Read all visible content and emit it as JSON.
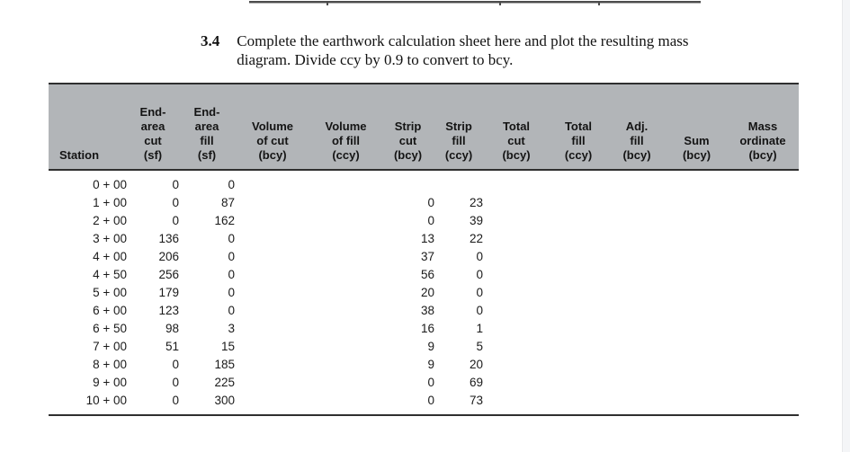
{
  "problem": {
    "number": "3.4",
    "statement": "Complete the earthwork calculation sheet here and plot the resulting mass\ndiagram. Divide ccy by 0.9 to convert to bcy."
  },
  "table": {
    "columns": [
      {
        "id": "station",
        "label": "Station"
      },
      {
        "id": "end_area_cut",
        "label": "End-\narea\ncut\n(sf)"
      },
      {
        "id": "end_area_fill",
        "label": "End-\narea\nfill\n(sf)"
      },
      {
        "id": "volume_of_cut",
        "label": "Volume\nof cut\n(bcy)"
      },
      {
        "id": "volume_of_fill",
        "label": "Volume\nof fill\n(ccy)"
      },
      {
        "id": "strip_cut",
        "label": "Strip\ncut\n(bcy)"
      },
      {
        "id": "strip_fill",
        "label": "Strip\nfill\n(ccy)"
      },
      {
        "id": "total_cut",
        "label": "Total\ncut\n(bcy)"
      },
      {
        "id": "total_fill",
        "label": "Total\nfill\n(ccy)"
      },
      {
        "id": "adj_fill",
        "label": "Adj.\nfill\n(bcy)"
      },
      {
        "id": "sum",
        "label": "Sum\n(bcy)"
      },
      {
        "id": "mass_ordinate",
        "label": "Mass\nordinate\n(bcy)"
      }
    ],
    "rows": [
      {
        "station": "0 + 00",
        "end_area_cut": "0",
        "end_area_fill": "0",
        "strip_cut": "",
        "strip_fill": "",
        "volume_of_cut": "",
        "volume_of_fill": "",
        "total_cut": "",
        "total_fill": "",
        "adj_fill": "",
        "sum": "",
        "mass_ordinate": ""
      },
      {
        "station": "1 + 00",
        "end_area_cut": "0",
        "end_area_fill": "87",
        "strip_cut": "0",
        "strip_fill": "23",
        "volume_of_cut": "",
        "volume_of_fill": "",
        "total_cut": "",
        "total_fill": "",
        "adj_fill": "",
        "sum": "",
        "mass_ordinate": ""
      },
      {
        "station": "2 + 00",
        "end_area_cut": "0",
        "end_area_fill": "162",
        "strip_cut": "0",
        "strip_fill": "39",
        "volume_of_cut": "",
        "volume_of_fill": "",
        "total_cut": "",
        "total_fill": "",
        "adj_fill": "",
        "sum": "",
        "mass_ordinate": ""
      },
      {
        "station": "3 + 00",
        "end_area_cut": "136",
        "end_area_fill": "0",
        "strip_cut": "13",
        "strip_fill": "22",
        "volume_of_cut": "",
        "volume_of_fill": "",
        "total_cut": "",
        "total_fill": "",
        "adj_fill": "",
        "sum": "",
        "mass_ordinate": ""
      },
      {
        "station": "4 + 00",
        "end_area_cut": "206",
        "end_area_fill": "0",
        "strip_cut": "37",
        "strip_fill": "0",
        "volume_of_cut": "",
        "volume_of_fill": "",
        "total_cut": "",
        "total_fill": "",
        "adj_fill": "",
        "sum": "",
        "mass_ordinate": ""
      },
      {
        "station": "4 + 50",
        "end_area_cut": "256",
        "end_area_fill": "0",
        "strip_cut": "56",
        "strip_fill": "0",
        "volume_of_cut": "",
        "volume_of_fill": "",
        "total_cut": "",
        "total_fill": "",
        "adj_fill": "",
        "sum": "",
        "mass_ordinate": ""
      },
      {
        "station": "5 + 00",
        "end_area_cut": "179",
        "end_area_fill": "0",
        "strip_cut": "20",
        "strip_fill": "0",
        "volume_of_cut": "",
        "volume_of_fill": "",
        "total_cut": "",
        "total_fill": "",
        "adj_fill": "",
        "sum": "",
        "mass_ordinate": ""
      },
      {
        "station": "6 + 00",
        "end_area_cut": "123",
        "end_area_fill": "0",
        "strip_cut": "38",
        "strip_fill": "0",
        "volume_of_cut": "",
        "volume_of_fill": "",
        "total_cut": "",
        "total_fill": "",
        "adj_fill": "",
        "sum": "",
        "mass_ordinate": ""
      },
      {
        "station": "6 + 50",
        "end_area_cut": "98",
        "end_area_fill": "3",
        "strip_cut": "16",
        "strip_fill": "1",
        "volume_of_cut": "",
        "volume_of_fill": "",
        "total_cut": "",
        "total_fill": "",
        "adj_fill": "",
        "sum": "",
        "mass_ordinate": ""
      },
      {
        "station": "7 + 00",
        "end_area_cut": "51",
        "end_area_fill": "15",
        "strip_cut": "9",
        "strip_fill": "5",
        "volume_of_cut": "",
        "volume_of_fill": "",
        "total_cut": "",
        "total_fill": "",
        "adj_fill": "",
        "sum": "",
        "mass_ordinate": ""
      },
      {
        "station": "8 + 00",
        "end_area_cut": "0",
        "end_area_fill": "185",
        "strip_cut": "9",
        "strip_fill": "20",
        "volume_of_cut": "",
        "volume_of_fill": "",
        "total_cut": "",
        "total_fill": "",
        "adj_fill": "",
        "sum": "",
        "mass_ordinate": ""
      },
      {
        "station": "9 + 00",
        "end_area_cut": "0",
        "end_area_fill": "225",
        "strip_cut": "0",
        "strip_fill": "69",
        "volume_of_cut": "",
        "volume_of_fill": "",
        "total_cut": "",
        "total_fill": "",
        "adj_fill": "",
        "sum": "",
        "mass_ordinate": ""
      },
      {
        "station": "10 + 00",
        "end_area_cut": "0",
        "end_area_fill": "300",
        "strip_cut": "0",
        "strip_fill": "73",
        "volume_of_cut": "",
        "volume_of_fill": "",
        "total_cut": "",
        "total_fill": "",
        "adj_fill": "",
        "sum": "",
        "mass_ordinate": ""
      }
    ]
  },
  "colors": {
    "header_bg": "#b2b5b8",
    "border_dark": "#2f2f2f",
    "page_bg": "#ffffff",
    "right_edge_strip": "#f4f5f7"
  }
}
